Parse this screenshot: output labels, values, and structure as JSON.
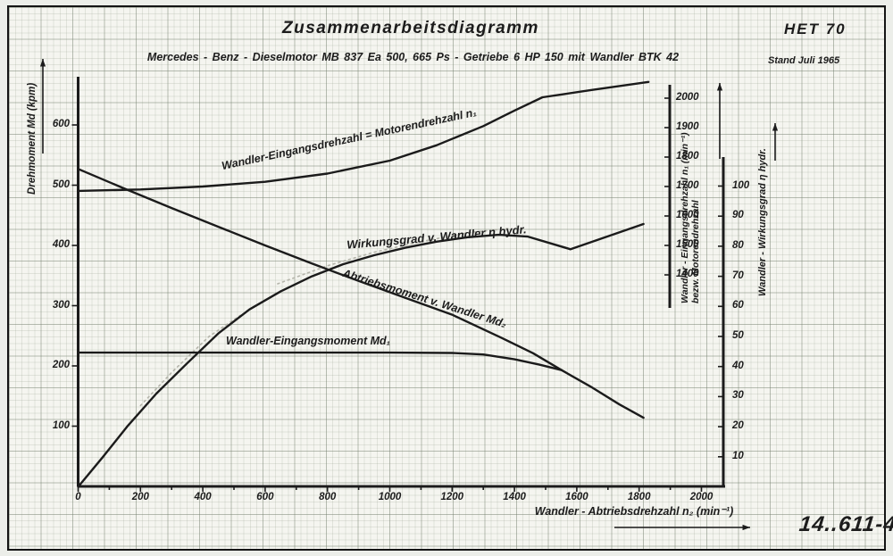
{
  "title": "Zusammenarbeitsdiagramm",
  "subtitle": "Mercedes - Benz - Dieselmotor  MB 837 Ea 500, 665 Ps - Getriebe  6 HP 150  mit  Wandler  BTK 42",
  "frame": {
    "ref": "HET 70",
    "date_label": "Stand Juli 1965",
    "doc_number": "14..611-4"
  },
  "chart_data": {
    "type": "line",
    "title": "Zusammenarbeitsdiagramm",
    "grid": true,
    "ink_color": "#1b1b1b",
    "paper_color": "#f5f5f0",
    "pencil_color": "#b4b4aa",
    "x_axis": {
      "label": "Wandler - Abtriebsdrehzahl n₂ (min⁻¹)",
      "min": 0,
      "max": 2080,
      "ticks": [
        0,
        200,
        400,
        600,
        800,
        1000,
        1200,
        1400,
        1600,
        1800,
        2000
      ],
      "minor_tick_step": 100
    },
    "y_axis_left": {
      "label": "Drehmoment Md (kpm)",
      "min": 0,
      "max": 680,
      "ticks": [
        100,
        200,
        300,
        400,
        500,
        600
      ]
    },
    "y_axis_n1": {
      "label": "Wandler - Eingangsdrehzahl n₁ (min⁻¹) bezw. Motorendrehzahl",
      "label_lines": [
        "Wandler - Eingangsdrehzahl n₁ (min⁻¹)",
        "bezw. Motorendrehzahl"
      ],
      "min": 1400,
      "max": 2060,
      "ticks": [
        1400,
        1500,
        1600,
        1700,
        1800,
        1900,
        2000
      ]
    },
    "y_axis_eta": {
      "label": "Wandler - Wirkungsgrad η hydr.",
      "min": 0,
      "max": 100,
      "ticks": [
        10,
        20,
        30,
        40,
        50,
        60,
        70,
        80,
        90,
        100
      ]
    },
    "series": [
      {
        "id": "n1",
        "name": "Wandler-Eingangsdrehzahl = Motorendrehzahl n₁",
        "axis": "n1",
        "points": [
          [
            0,
            1685
          ],
          [
            200,
            1690
          ],
          [
            400,
            1700
          ],
          [
            600,
            1716
          ],
          [
            800,
            1744
          ],
          [
            1000,
            1788
          ],
          [
            1150,
            1840
          ],
          [
            1300,
            1905
          ],
          [
            1400,
            1958
          ],
          [
            1490,
            2003
          ],
          [
            1560,
            2014
          ],
          [
            1643,
            2027
          ],
          [
            1830,
            2055
          ]
        ]
      },
      {
        "id": "eta",
        "name": "Wirkungsgrad v. Wandler η hydr.",
        "axis": "eta",
        "points": [
          [
            0,
            0
          ],
          [
            80,
            10
          ],
          [
            157,
            20
          ],
          [
            251,
            31
          ],
          [
            349,
            41
          ],
          [
            450,
            51
          ],
          [
            550,
            59
          ],
          [
            650,
            65
          ],
          [
            750,
            70
          ],
          [
            850,
            74
          ],
          [
            950,
            77
          ],
          [
            1050,
            79.5
          ],
          [
            1150,
            81.5
          ],
          [
            1250,
            83
          ],
          [
            1350,
            83.8
          ],
          [
            1443,
            83.2
          ],
          [
            1580,
            79
          ],
          [
            1814,
            87.4
          ]
        ]
      },
      {
        "id": "md2",
        "name": "Abtriebsmoment v. Wandler Md₂",
        "axis": "md",
        "points": [
          [
            0,
            527
          ],
          [
            150,
            494
          ],
          [
            300,
            462
          ],
          [
            450,
            431
          ],
          [
            600,
            400
          ],
          [
            750,
            370
          ],
          [
            900,
            341
          ],
          [
            1050,
            313
          ],
          [
            1200,
            285
          ],
          [
            1357,
            247
          ],
          [
            1460,
            221
          ],
          [
            1551,
            193
          ],
          [
            1643,
            166
          ],
          [
            1737,
            136
          ],
          [
            1814,
            114
          ]
        ]
      },
      {
        "id": "md1",
        "name": "Wandler-Eingangsmoment Md₁",
        "axis": "md",
        "points": [
          [
            0,
            222
          ],
          [
            300,
            222
          ],
          [
            700,
            222
          ],
          [
            1000,
            222
          ],
          [
            1200,
            221.5
          ],
          [
            1300,
            219
          ],
          [
            1400,
            211
          ],
          [
            1480,
            202
          ],
          [
            1551,
            193
          ]
        ]
      }
    ],
    "pencil_ghosts": [
      {
        "axis": "eta",
        "points": [
          [
            640,
            67.5
          ],
          [
            800,
            73.5
          ],
          [
            950,
            78
          ],
          [
            1100,
            81.5
          ],
          [
            1250,
            84.5
          ],
          [
            1390,
            86
          ]
        ]
      },
      {
        "axis": "eta",
        "points": [
          [
            200,
            27
          ],
          [
            300,
            38
          ],
          [
            420,
            50
          ],
          [
            520,
            57
          ]
        ]
      }
    ]
  }
}
